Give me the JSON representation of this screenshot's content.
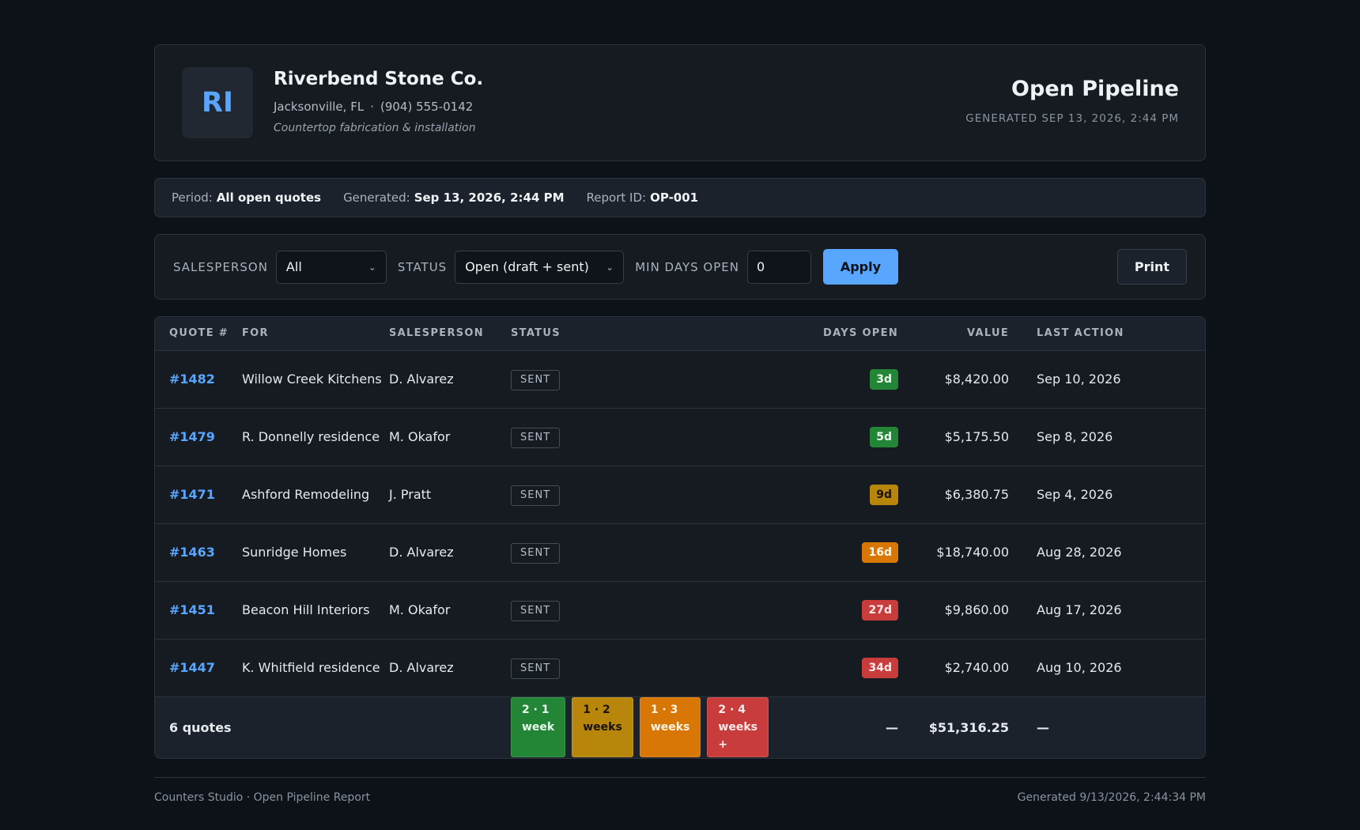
{
  "company": {
    "initials": "RI",
    "name": "Riverbend Stone Co.",
    "city": "Jacksonville, FL",
    "separator": "·",
    "phone": "(904) 555-0142",
    "tagline": "Countertop fabrication & installation"
  },
  "report": {
    "title": "Open Pipeline",
    "generated": "GENERATED SEP 13, 2026, 2:44 PM"
  },
  "meta": {
    "period_label": "Period:",
    "period_value": "All open quotes",
    "generated_label": "Generated:",
    "generated_value": "Sep 13, 2026, 2:44 PM",
    "report_id_label": "Report ID:",
    "report_id_value": "OP-001"
  },
  "filters": {
    "salesperson_label": "SALESPERSON",
    "salesperson_value": "All",
    "status_label": "STATUS",
    "status_value": "Open (draft + sent)",
    "min_days_label": "MIN DAYS OPEN",
    "min_days_value": "0",
    "apply_label": "Apply",
    "print_label": "Print"
  },
  "table": {
    "headers": {
      "quote": "QUOTE #",
      "for": "FOR",
      "salesperson": "SALESPERSON",
      "status": "STATUS",
      "days_open": "DAYS OPEN",
      "value": "VALUE",
      "last_action": "LAST ACTION"
    },
    "rows": [
      {
        "quote": "#1482",
        "for": "Willow Creek Kitchens",
        "salesperson": "D. Alvarez",
        "status": "SENT",
        "days": "3d",
        "days_color": "green",
        "value": "$8,420.00",
        "last_action": "Sep 10, 2026"
      },
      {
        "quote": "#1479",
        "for": "R. Donnelly residence",
        "salesperson": "M. Okafor",
        "status": "SENT",
        "days": "5d",
        "days_color": "green",
        "value": "$5,175.50",
        "last_action": "Sep 8, 2026"
      },
      {
        "quote": "#1471",
        "for": "Ashford Remodeling",
        "salesperson": "J. Pratt",
        "status": "SENT",
        "days": "9d",
        "days_color": "yellow",
        "value": "$6,380.75",
        "last_action": "Sep 4, 2026"
      },
      {
        "quote": "#1463",
        "for": "Sunridge Homes",
        "salesperson": "D. Alvarez",
        "status": "SENT",
        "days": "16d",
        "days_color": "orange",
        "value": "$18,740.00",
        "last_action": "Aug 28, 2026"
      },
      {
        "quote": "#1451",
        "for": "Beacon Hill Interiors",
        "salesperson": "M. Okafor",
        "status": "SENT",
        "days": "27d",
        "days_color": "red",
        "value": "$9,860.00",
        "last_action": "Aug 17, 2026"
      },
      {
        "quote": "#1447",
        "for": "K. Whitfield residence",
        "salesperson": "D. Alvarez",
        "status": "SENT",
        "days": "34d",
        "days_color": "red",
        "value": "$2,740.00",
        "last_action": "Aug 10, 2026"
      }
    ],
    "footer": {
      "count": "6 quotes",
      "legend": [
        {
          "text": "2 · 1 week",
          "color": "green"
        },
        {
          "text": "1 · 2 weeks",
          "color": "yellow"
        },
        {
          "text": "1 · 3 weeks",
          "color": "orange"
        },
        {
          "text": "2 · 4 weeks +",
          "color": "red"
        }
      ],
      "days_total": "—",
      "value_total": "$51,316.25",
      "last_action_total": "—"
    }
  },
  "colors": {
    "green": "#238636",
    "yellow": "#b8860b",
    "orange": "#d97706",
    "red": "#c93c3c",
    "accent": "#58a6ff"
  },
  "footer": {
    "left": "Counters Studio · Open Pipeline Report",
    "right": "Generated 9/13/2026, 2:44:34 PM"
  }
}
